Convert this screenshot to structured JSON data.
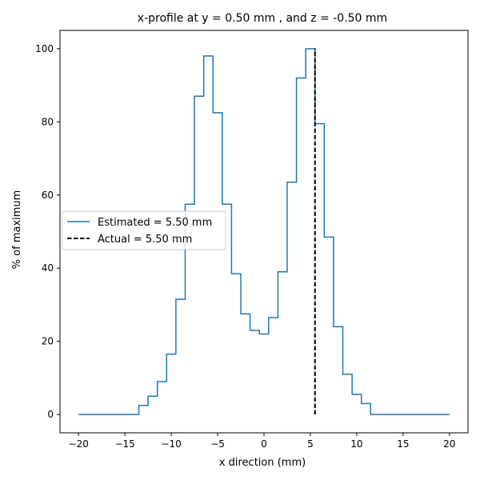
{
  "chart_data": {
    "type": "line",
    "title": "x-profile at y = 0.50 mm , and z = -0.50 mm",
    "xlabel": "x direction (mm)",
    "ylabel": "% of maximum",
    "xlim": [
      -22,
      22
    ],
    "ylim": [
      -5,
      105
    ],
    "x_ticks": [
      -20,
      -15,
      -10,
      -5,
      0,
      5,
      10,
      15,
      20
    ],
    "y_ticks": [
      0,
      20,
      40,
      60,
      80,
      100
    ],
    "grid": false,
    "legend_position": "center-left",
    "series": [
      {
        "name": "Estimated = 5.50 mm",
        "style": "step",
        "color": "#1f77b4",
        "x": [
          -20,
          -19,
          -18,
          -17,
          -16,
          -15,
          -14,
          -13,
          -12,
          -11,
          -10,
          -9,
          -8,
          -7,
          -6,
          -5,
          -4,
          -3,
          -2,
          -1,
          0,
          1,
          2,
          3,
          4,
          5,
          6,
          7,
          8,
          9,
          10,
          11,
          12,
          13,
          14,
          15,
          16,
          17,
          18,
          19,
          20
        ],
        "y": [
          0,
          0,
          0,
          0,
          0,
          0,
          0,
          2.5,
          5,
          9,
          16.5,
          31.5,
          57.5,
          87,
          98,
          82.5,
          57.5,
          38.5,
          27.5,
          23,
          22,
          26.5,
          39,
          63.5,
          92,
          100,
          79.5,
          48.5,
          24,
          11,
          5.5,
          3,
          0,
          0,
          0,
          0,
          0,
          0,
          0,
          0,
          0
        ]
      },
      {
        "name": "Actual = 5.50 mm",
        "style": "dashed",
        "color": "#000000",
        "x": [
          5.5,
          5.5
        ],
        "y": [
          0,
          100
        ]
      }
    ]
  }
}
